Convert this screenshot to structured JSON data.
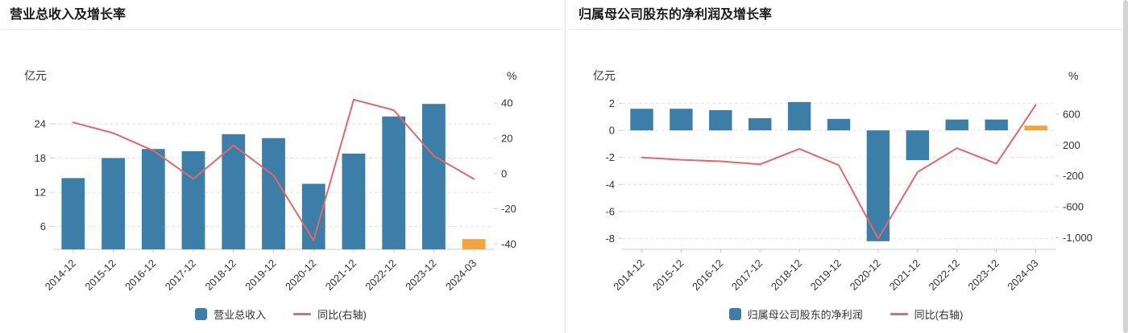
{
  "chart_data": [
    {
      "type": "bar+line-dual-axis",
      "title": "营业总收入及增长率",
      "categories": [
        "2014-12",
        "2015-12",
        "2016-12",
        "2017-12",
        "2018-12",
        "2019-12",
        "2020-12",
        "2021-12",
        "2022-12",
        "2023-12",
        "2024-03"
      ],
      "series": [
        {
          "name": "营业总收入",
          "type": "bar",
          "axis": "left",
          "unit": "亿元",
          "values": [
            14.5,
            18.0,
            19.6,
            19.2,
            22.2,
            21.5,
            13.5,
            18.8,
            25.3,
            27.5,
            3.8
          ]
        },
        {
          "name": "同比(右轴)",
          "type": "line",
          "axis": "right",
          "unit": "%",
          "values": [
            29,
            23,
            13,
            -3,
            16,
            -1,
            -38,
            42,
            36,
            10,
            -3
          ]
        }
      ],
      "ylabel_left": "亿元",
      "ylabel_right": "%",
      "ylim_left": [
        2,
        29.5
      ],
      "ylim_right": [
        -43,
        46
      ],
      "yticks_left": [
        {
          "v": 6,
          "label": "6"
        },
        {
          "v": 12,
          "label": "12"
        },
        {
          "v": 18,
          "label": "18"
        },
        {
          "v": 24,
          "label": "24"
        }
      ],
      "yticks_right": [
        {
          "v": -40,
          "label": "-40"
        },
        {
          "v": -20,
          "label": "-20"
        },
        {
          "v": 0,
          "label": "0"
        },
        {
          "v": 20,
          "label": "20"
        },
        {
          "v": 40,
          "label": "40"
        }
      ],
      "colors": {
        "bar": "#3c7ea8",
        "bar_last": "#f3a43e",
        "line": "#e0696a",
        "grid": "#e2e2e2",
        "axis": "#c9c9c9",
        "text": "#333333"
      },
      "grid": "dashed-horizontal",
      "legend_position": "bottom-center",
      "highlight_last_bar": true
    },
    {
      "type": "bar+line-dual-axis",
      "title": "归属母公司股东的净利润及增长率",
      "categories": [
        "2014-12",
        "2015-12",
        "2016-12",
        "2017-12",
        "2018-12",
        "2019-12",
        "2020-12",
        "2021-12",
        "2022-12",
        "2023-12",
        "2024-03"
      ],
      "series": [
        {
          "name": "归属母公司股东的净利润",
          "type": "bar",
          "axis": "left",
          "unit": "亿元",
          "values": [
            1.6,
            1.6,
            1.5,
            0.9,
            2.1,
            0.85,
            -8.2,
            -2.2,
            0.8,
            0.8,
            0.35
          ]
        },
        {
          "name": "同比(右轴)",
          "type": "line",
          "axis": "right",
          "unit": "%",
          "values": [
            40,
            10,
            -10,
            -50,
            150,
            -60,
            -1010,
            -150,
            160,
            -40,
            720
          ]
        }
      ],
      "ylabel_left": "亿元",
      "ylabel_right": "%",
      "ylim_left": [
        -8.8,
        2.8
      ],
      "ylim_right": [
        -1150,
        880
      ],
      "yticks_left": [
        {
          "v": 2,
          "label": "2"
        },
        {
          "v": 0,
          "label": "0"
        },
        {
          "v": -2,
          "label": "-2"
        },
        {
          "v": -4,
          "label": "-4"
        },
        {
          "v": -6,
          "label": "-6"
        },
        {
          "v": -8,
          "label": "-8"
        }
      ],
      "yticks_right": [
        {
          "v": 600,
          "label": "600"
        },
        {
          "v": 200,
          "label": "200"
        },
        {
          "v": -200,
          "label": "-200"
        },
        {
          "v": -600,
          "label": "-600"
        },
        {
          "v": -1000,
          "label": "-1,000"
        }
      ],
      "colors": {
        "bar": "#3c7ea8",
        "bar_last": "#f3a43e",
        "line": "#e0696a",
        "grid": "#e2e2e2",
        "axis": "#c9c9c9",
        "text": "#333333"
      },
      "grid": "dashed-horizontal",
      "legend_position": "bottom-center",
      "highlight_last_bar": true
    }
  ],
  "ui": {
    "background": "#ffffff",
    "divider_color": "#e0e0e0",
    "scrollbar_thumb": "#d4d4d4",
    "title_color": "#1a1a1a"
  }
}
